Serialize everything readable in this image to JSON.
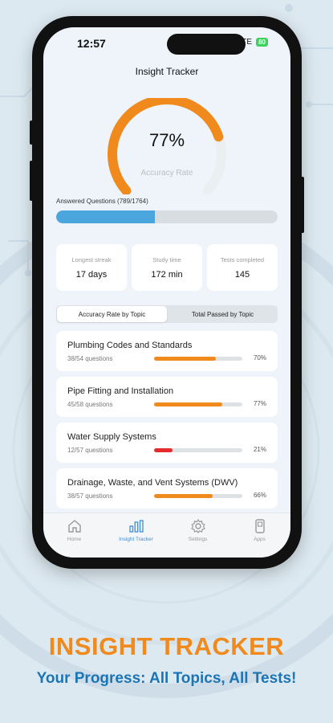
{
  "status": {
    "time": "12:57",
    "network": "LTE",
    "battery": "80"
  },
  "app_title": "Insight Tracker",
  "gauge": {
    "percent": 77,
    "value_text": "77%",
    "label": "Accuracy Rate"
  },
  "answered": {
    "label": "Answered Questions (789/1764)",
    "fraction": 0.447
  },
  "stats": [
    {
      "label": "Longest streak",
      "value": "17 days"
    },
    {
      "label": "Study time",
      "value": "172 min"
    },
    {
      "label": "Tests completed",
      "value": "145"
    }
  ],
  "tabs": [
    {
      "label": "Accuracy Rate by Topic",
      "active": true
    },
    {
      "label": "Total Passed by Topic",
      "active": false
    }
  ],
  "topics": [
    {
      "name": "Plumbing Codes and Standards",
      "questions": "38/54 questions",
      "percent_text": "70%",
      "fraction": 0.7,
      "color": "#f08a1c"
    },
    {
      "name": "Pipe Fitting and Installation",
      "questions": "45/58 questions",
      "percent_text": "77%",
      "fraction": 0.77,
      "color": "#f08a1c"
    },
    {
      "name": "Water Supply Systems",
      "questions": "12/57 questions",
      "percent_text": "21%",
      "fraction": 0.21,
      "color": "#e52b2b"
    },
    {
      "name": "Drainage, Waste, and Vent Systems (DWV)",
      "questions": "38/57 questions",
      "percent_text": "66%",
      "fraction": 0.66,
      "color": "#f08a1c"
    }
  ],
  "tab_bar": [
    {
      "label": "Home",
      "icon": "home-icon",
      "active": false
    },
    {
      "label": "Insight Tracker",
      "icon": "bar-chart-icon",
      "active": true
    },
    {
      "label": "Settings",
      "icon": "gear-icon",
      "active": false
    },
    {
      "label": "Apps",
      "icon": "phone-apps-icon",
      "active": false
    }
  ],
  "promo": {
    "headline": "INSIGHT TRACKER",
    "subline": "Your Progress: All Topics, All Tests!"
  },
  "colors": {
    "accent_orange": "#f08a1c",
    "progress_blue": "#4aa6dc",
    "subline_blue": "#1b75b5",
    "low_red": "#e52b2b",
    "active_tab_blue": "#3d8fd6"
  }
}
